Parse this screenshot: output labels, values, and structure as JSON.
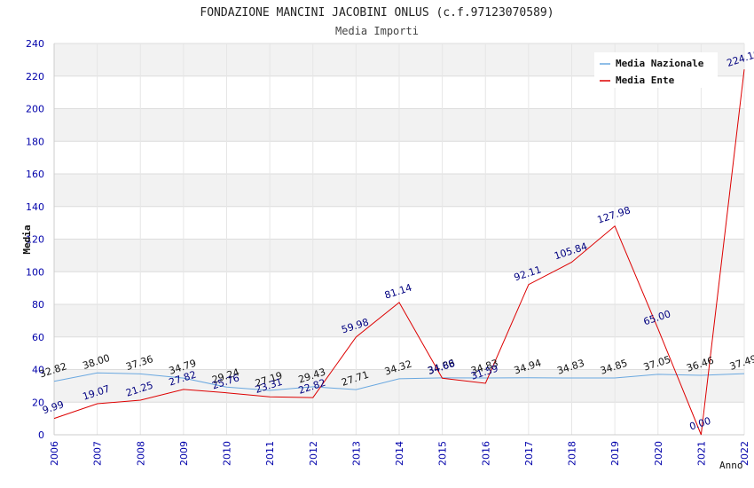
{
  "chart_data": {
    "type": "line",
    "title": "FONDAZIONE MANCINI JACOBINI ONLUS (c.f.97123070589)",
    "subtitle": "Media Importi",
    "xlabel": "Anno",
    "ylabel": "Media",
    "ylim": [
      0,
      240
    ],
    "ytick_step": 20,
    "grid": true,
    "legend_position": "top-right",
    "categories": [
      "2006",
      "2007",
      "2008",
      "2009",
      "2010",
      "2011",
      "2012",
      "2013",
      "2014",
      "2015",
      "2016",
      "2017",
      "2018",
      "2019",
      "2020",
      "2021",
      "2022"
    ],
    "series": [
      {
        "name": "Media Nazionale",
        "color": "#6aa8e0",
        "label_color": "#111111",
        "values": [
          32.82,
          38.0,
          37.36,
          34.79,
          29.24,
          27.19,
          29.43,
          27.71,
          34.32,
          34.86,
          34.83,
          34.94,
          34.83,
          34.85,
          37.05,
          36.46,
          37.49
        ],
        "labels": [
          "32.82",
          "38.00",
          "37.36",
          "34.79",
          "29.24",
          "27.19",
          "29.43",
          "27.71",
          "34.32",
          "34.86",
          "34.83",
          "34.94",
          "34.83",
          "34.85",
          "37.05",
          "36.46",
          "37.49"
        ]
      },
      {
        "name": "Media Ente",
        "color": "#dd0000",
        "label_color": "#000080",
        "values": [
          9.99,
          19.07,
          21.25,
          27.82,
          25.76,
          23.31,
          22.82,
          59.98,
          81.14,
          34.68,
          31.59,
          92.11,
          105.84,
          127.98,
          65.0,
          0.0,
          224.1
        ],
        "labels": [
          "9.99",
          "19.07",
          "21.25",
          "27.82",
          "25.76",
          "23.31",
          "22.82",
          "59.98",
          "81.14",
          "34.68",
          "31.59",
          "92.11",
          "105.84",
          "127.98",
          "65.00",
          "0.00",
          "224.10"
        ]
      }
    ]
  }
}
